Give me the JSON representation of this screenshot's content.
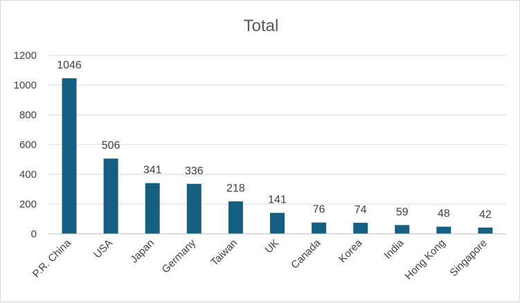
{
  "chart_data": {
    "type": "bar",
    "title": "Total",
    "xlabel": "",
    "ylabel": "",
    "categories": [
      "P.R. China",
      "USA",
      "Japan",
      "Germany",
      "Taiwan",
      "UK",
      "Canada",
      "Korea",
      "India",
      "Hong Kong",
      "Singapore"
    ],
    "values": [
      1046,
      506,
      341,
      336,
      218,
      141,
      76,
      74,
      59,
      48,
      42
    ],
    "ylim": [
      0,
      1200
    ],
    "yticks": [
      0,
      200,
      400,
      600,
      800,
      1000,
      1200
    ],
    "grid": true,
    "legend": "none",
    "bar_color": "#156082"
  }
}
